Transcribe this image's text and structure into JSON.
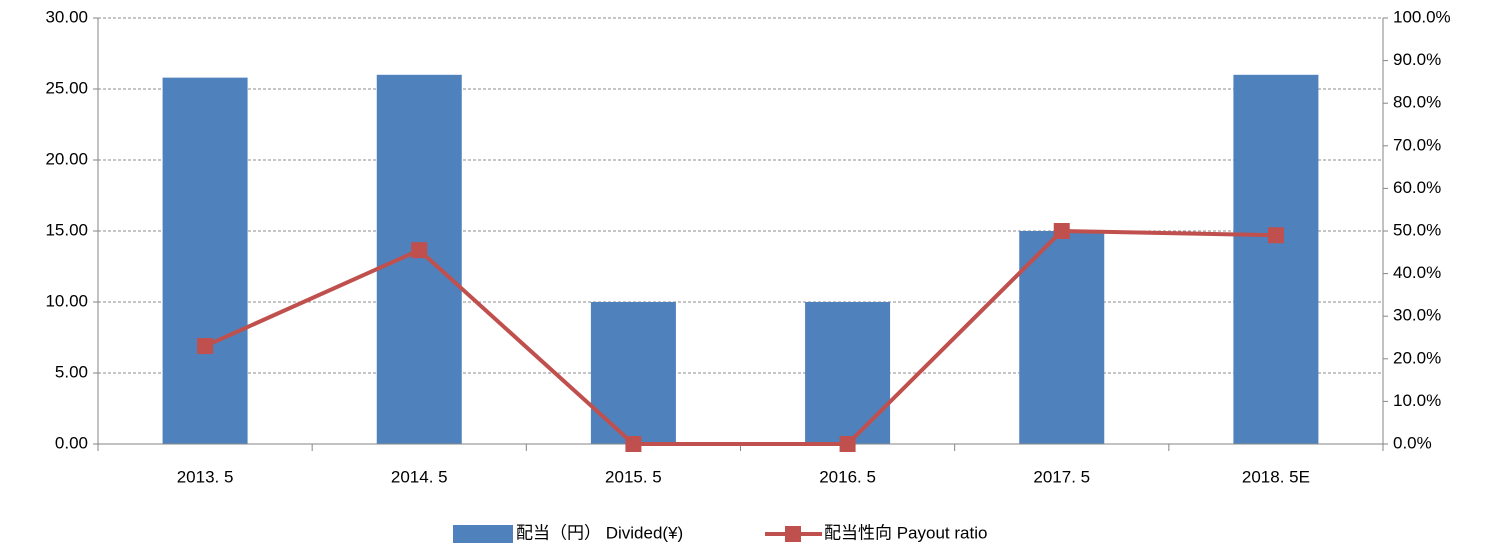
{
  "chart_data": {
    "type": "bar",
    "categories": [
      "2013. 5",
      "2014. 5",
      "2015. 5",
      "2016. 5",
      "2017. 5",
      "2018. 5E"
    ],
    "series": [
      {
        "name": "配当（円） Divided(¥)",
        "type": "bar",
        "color": "#4f81bd",
        "values": [
          25.8,
          26,
          10,
          10,
          15,
          26
        ]
      },
      {
        "name": "配当性向 Payout ratio",
        "type": "line",
        "color": "#c0504d",
        "axis": "y2",
        "values": [
          23,
          45.5,
          0,
          0,
          50,
          49
        ]
      }
    ],
    "ylim": [
      0,
      30
    ],
    "yticks": [
      {
        "value": 0,
        "label": "0.00"
      },
      {
        "value": 5,
        "label": "5.00"
      },
      {
        "value": 10,
        "label": "10.00"
      },
      {
        "value": 15,
        "label": "15.00"
      },
      {
        "value": 20,
        "label": "20.00"
      },
      {
        "value": 25,
        "label": "25.00"
      },
      {
        "value": 30,
        "label": "30.00"
      }
    ],
    "y2lim": [
      0,
      100
    ],
    "y2ticks": [
      {
        "value": 0,
        "label": "0.0%"
      },
      {
        "value": 10,
        "label": "10.0%"
      },
      {
        "value": 20,
        "label": "20.0%"
      },
      {
        "value": 30,
        "label": "30.0%"
      },
      {
        "value": 40,
        "label": "40.0%"
      },
      {
        "value": 50,
        "label": "50.0%"
      },
      {
        "value": 60,
        "label": "60.0%"
      },
      {
        "value": 70,
        "label": "70.0%"
      },
      {
        "value": 80,
        "label": "80.0%"
      },
      {
        "value": 90,
        "label": "90.0%"
      },
      {
        "value": 100,
        "label": "100.0%"
      }
    ],
    "grid": true,
    "legend": "bottom"
  }
}
